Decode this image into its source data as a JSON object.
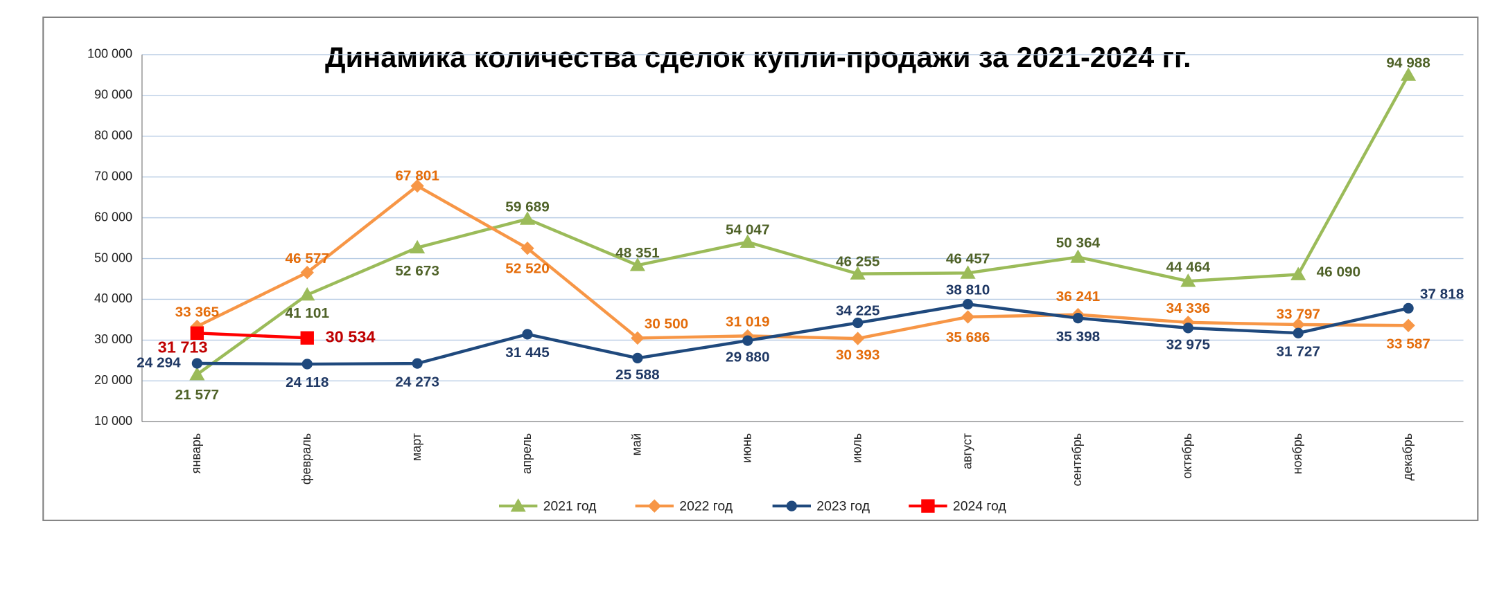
{
  "chart_data": {
    "type": "line",
    "title": "Динамика количества сделок купли-продажи за 2021-2024 гг.",
    "categories": [
      "январь",
      "февраль",
      "март",
      "апрель",
      "май",
      "июнь",
      "июль",
      "август",
      "сентябрь",
      "октябрь",
      "ноябрь",
      "декабрь"
    ],
    "ylim": [
      10000,
      100000
    ],
    "yticks": [
      {
        "value": 10000,
        "label": "10 000"
      },
      {
        "value": 20000,
        "label": "20 000"
      },
      {
        "value": 30000,
        "label": "30 000"
      },
      {
        "value": 40000,
        "label": "40 000"
      },
      {
        "value": 50000,
        "label": "50 000"
      },
      {
        "value": 60000,
        "label": "60 000"
      },
      {
        "value": 70000,
        "label": "70 000"
      },
      {
        "value": 80000,
        "label": "80 000"
      },
      {
        "value": 90000,
        "label": "90 000"
      },
      {
        "value": 100000,
        "label": "100 000"
      }
    ],
    "grid": true,
    "legend": "bottom",
    "series": [
      {
        "name": "2021 год",
        "color": "#9bbb59",
        "marker": "triangle",
        "label_color": "#4f6228",
        "values": [
          21577,
          41101,
          52673,
          59689,
          48351,
          54047,
          46255,
          46457,
          50364,
          44464,
          46090,
          94988
        ],
        "value_labels": [
          "21 577",
          "41 101",
          "52 673",
          "59 689",
          "48 351",
          "54 047",
          "46 255",
          "46 457",
          "50 364",
          "44 464",
          "46 090",
          "94 988"
        ]
      },
      {
        "name": "2022 год",
        "color": "#f79646",
        "marker": "diamond",
        "label_color": "#e46c0a",
        "values": [
          33365,
          46577,
          67801,
          52520,
          30500,
          31019,
          30393,
          35686,
          36241,
          34336,
          33797,
          33587
        ],
        "value_labels": [
          "33 365",
          "46 577",
          "67 801",
          "52 520",
          "30 500",
          "31 019",
          "30 393",
          "35 686",
          "36 241",
          "34 336",
          "33 797",
          "33 587"
        ]
      },
      {
        "name": "2023 год",
        "color": "#1f497d",
        "marker": "circle",
        "label_color": "#1f3864",
        "values": [
          24294,
          24118,
          24273,
          31445,
          25588,
          29880,
          34225,
          38810,
          35398,
          32975,
          31727,
          37818
        ],
        "value_labels": [
          "24 294",
          "24 118",
          "24 273",
          "31 445",
          "25 588",
          "29 880",
          "34 225",
          "38 810",
          "35 398",
          "32 975",
          "31 727",
          "37 818"
        ]
      },
      {
        "name": "2024 год",
        "color": "#ff0000",
        "marker": "square",
        "label_color": "#c00000",
        "values": [
          31713,
          30534,
          null,
          null,
          null,
          null,
          null,
          null,
          null,
          null,
          null,
          null
        ],
        "value_labels": [
          "31 713",
          "30 534",
          null,
          null,
          null,
          null,
          null,
          null,
          null,
          null,
          null,
          null
        ]
      }
    ]
  }
}
